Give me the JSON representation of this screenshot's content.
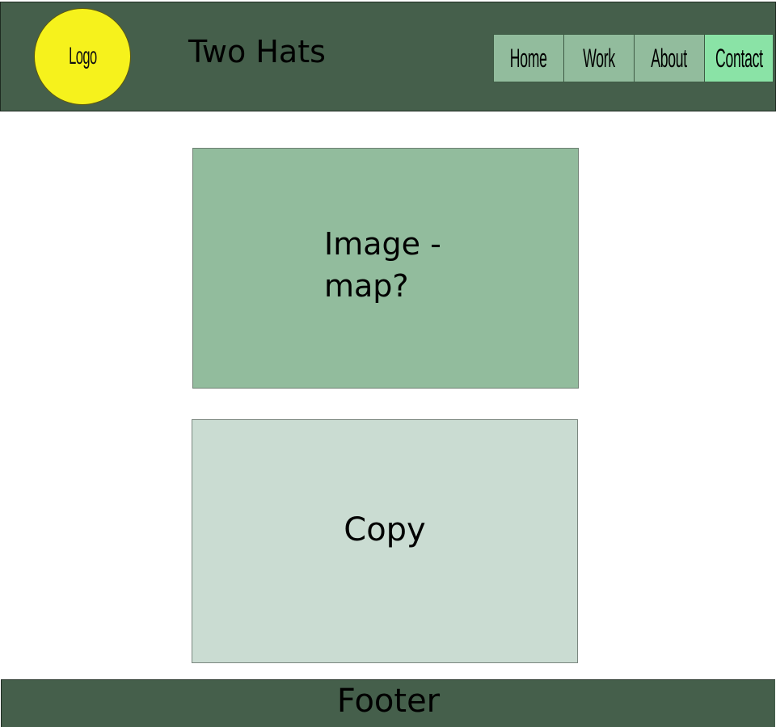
{
  "header": {
    "logo_label": "Logo",
    "site_title": "Two Hats",
    "background_color": "#455f4b"
  },
  "nav": {
    "items": [
      {
        "label": "Home",
        "active": false
      },
      {
        "label": "Work",
        "active": false
      },
      {
        "label": "About",
        "active": false
      },
      {
        "label": "Contact",
        "active": true
      }
    ],
    "item_color": "#92bc9d",
    "active_color": "#8ae3a6"
  },
  "main": {
    "image_block_label": "Image -\nmap?",
    "copy_block_label": "Copy"
  },
  "footer": {
    "label": "Footer"
  },
  "colors": {
    "logo": "#f6f21c",
    "image_block": "#92bc9d",
    "copy_block": "#cadcd2"
  }
}
